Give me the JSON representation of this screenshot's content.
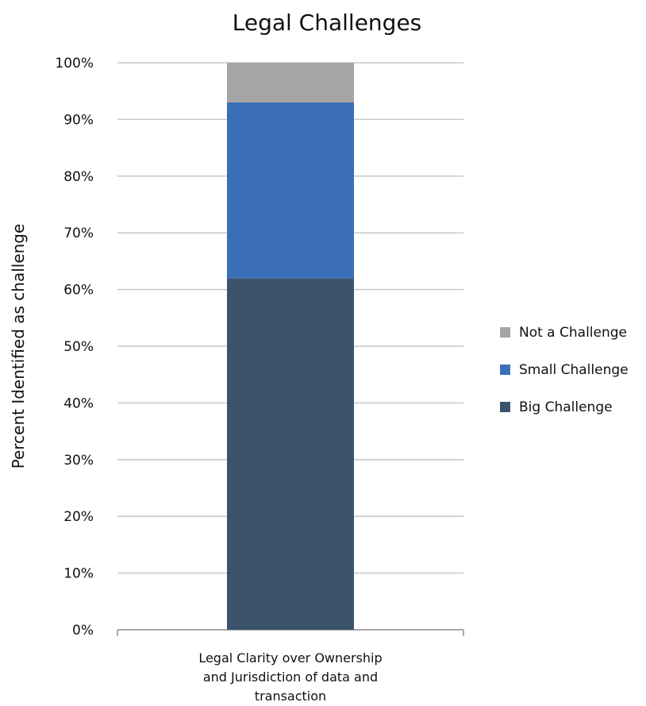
{
  "chart_data": {
    "type": "bar",
    "stacked": true,
    "title": "Legal Challenges",
    "xlabel": "",
    "ylabel": "Percent Identified as challenge",
    "categories": [
      "Legal Clarity over Ownership and Jurisdiction of data and transaction"
    ],
    "category_label_lines": [
      "Legal Clarity over Ownership",
      "and Jurisdiction of data and",
      "transaction"
    ],
    "series": [
      {
        "name": "Big Challenge",
        "values": [
          62
        ],
        "color": "#3b546c"
      },
      {
        "name": "Small Challenge",
        "values": [
          31
        ],
        "color": "#3a6fb8"
      },
      {
        "name": "Not a Challenge",
        "values": [
          7
        ],
        "color": "#a5a5a5"
      }
    ],
    "ylim": [
      0,
      100
    ],
    "yticks": [
      0,
      10,
      20,
      30,
      40,
      50,
      60,
      70,
      80,
      90,
      100
    ],
    "ytick_labels": [
      "0%",
      "10%",
      "20%",
      "30%",
      "40%",
      "50%",
      "60%",
      "70%",
      "80%",
      "90%",
      "100%"
    ],
    "grid": true,
    "legend_position": "right",
    "legend_entries": [
      "Not a Challenge",
      "Small Challenge",
      "Big Challenge"
    ]
  }
}
